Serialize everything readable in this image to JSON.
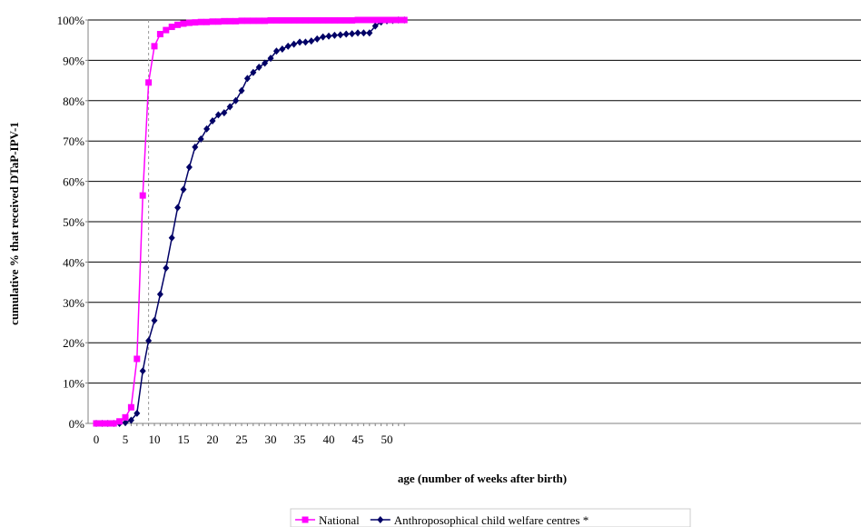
{
  "chart_data": {
    "type": "line",
    "title": "",
    "xlabel": "age (number of weeks after birth)",
    "ylabel": "cumulative % that received DTaP-IPV-1",
    "xlim": [
      0,
      53
    ],
    "ylim": [
      0,
      100
    ],
    "x_ticks": [
      0,
      5,
      10,
      15,
      20,
      25,
      30,
      35,
      40,
      45,
      50
    ],
    "y_ticks": [
      0,
      10,
      20,
      30,
      40,
      50,
      60,
      70,
      80,
      90,
      100
    ],
    "y_tick_labels": [
      "0%",
      "10%",
      "20%",
      "30%",
      "40%",
      "50%",
      "60%",
      "70%",
      "80%",
      "90%",
      "100%"
    ],
    "grid": "horizontal",
    "reference_line_x": 9,
    "legend_position": "bottom",
    "series": [
      {
        "name": "National",
        "color": "#ff00ff",
        "marker": "square",
        "x": [
          0,
          1,
          2,
          3,
          4,
          5,
          6,
          7,
          8,
          9,
          10,
          11,
          12,
          13,
          14,
          15,
          16,
          17,
          18,
          19,
          20,
          21,
          22,
          23,
          24,
          25,
          26,
          27,
          28,
          29,
          30,
          31,
          32,
          33,
          34,
          35,
          36,
          37,
          38,
          39,
          40,
          41,
          42,
          43,
          44,
          45,
          46,
          47,
          48,
          49,
          50,
          51,
          52,
          53
        ],
        "y": [
          0,
          0,
          0,
          0,
          0.5,
          1.5,
          4,
          16,
          56.5,
          84.5,
          93.5,
          96.5,
          97.5,
          98.3,
          98.8,
          99.1,
          99.3,
          99.4,
          99.5,
          99.5,
          99.6,
          99.6,
          99.7,
          99.7,
          99.7,
          99.8,
          99.8,
          99.8,
          99.8,
          99.8,
          99.9,
          99.9,
          99.9,
          99.9,
          99.9,
          99.9,
          99.9,
          99.9,
          99.9,
          99.9,
          99.9,
          99.9,
          99.9,
          99.9,
          99.9,
          100,
          100,
          100,
          100,
          100,
          100,
          100,
          100,
          100
        ]
      },
      {
        "name": "Anthroposophical child welfare centres *",
        "color": "#000066",
        "marker": "diamond",
        "x": [
          0,
          1,
          2,
          3,
          4,
          5,
          6,
          7,
          8,
          9,
          10,
          11,
          12,
          13,
          14,
          15,
          16,
          17,
          18,
          19,
          20,
          21,
          22,
          23,
          24,
          25,
          26,
          27,
          28,
          29,
          30,
          31,
          32,
          33,
          34,
          35,
          36,
          37,
          38,
          39,
          40,
          41,
          42,
          43,
          44,
          45,
          46,
          47,
          48,
          49,
          50,
          51,
          52,
          53
        ],
        "y": [
          0,
          0,
          0,
          0,
          0,
          0.2,
          0.8,
          2.5,
          13,
          20.5,
          25.5,
          32,
          38.5,
          46,
          53.5,
          58,
          63.5,
          68.5,
          70.5,
          73,
          75,
          76.5,
          77,
          78.5,
          80,
          82.5,
          85.5,
          87,
          88.3,
          89.3,
          90.5,
          92.3,
          92.8,
          93.5,
          94,
          94.5,
          94.5,
          94.8,
          95.3,
          95.8,
          96,
          96.2,
          96.3,
          96.5,
          96.6,
          96.8,
          96.8,
          96.8,
          98.5,
          99.5,
          99.8,
          99.9,
          100,
          100
        ]
      }
    ]
  }
}
